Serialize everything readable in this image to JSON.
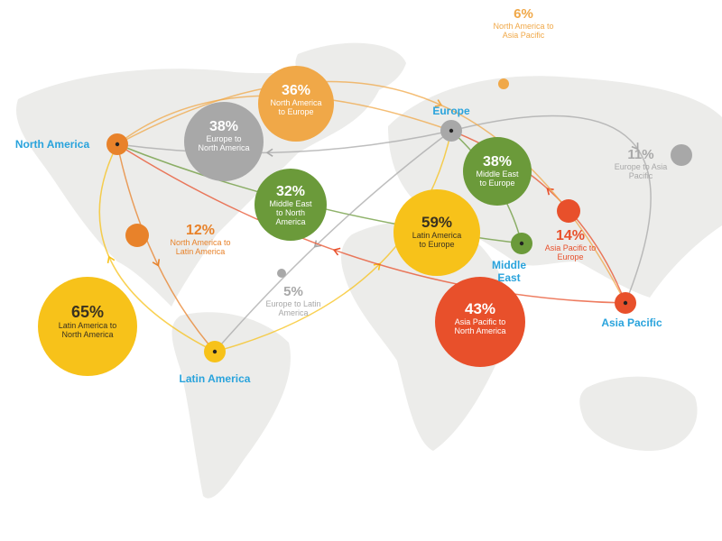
{
  "colors": {
    "orange": "#e8822a",
    "light_orange": "#f0a848",
    "gray": "#a8a8a8",
    "green": "#6b9a3a",
    "yellow": "#f7c21a",
    "red": "#e8502b",
    "region_label": "#29a3dc",
    "land": "#ececea"
  },
  "regions": [
    {
      "id": "na",
      "name": "North America",
      "color": "#e8822a"
    },
    {
      "id": "eu",
      "name": "Europe",
      "color": "#a8a8a8"
    },
    {
      "id": "me",
      "name": "Middle East",
      "color": "#6b9a3a"
    },
    {
      "id": "ap",
      "name": "Asia Pacific",
      "color": "#e8502b"
    },
    {
      "id": "la",
      "name": "Latin America",
      "color": "#f7c21a"
    }
  ],
  "flows": [
    {
      "percent": "36%",
      "label": "North America to Europe",
      "from": "na",
      "to": "eu",
      "color": "#f0a848",
      "value": 36
    },
    {
      "percent": "38%",
      "label": "Europe to North America",
      "from": "eu",
      "to": "na",
      "color": "#a8a8a8",
      "value": 38
    },
    {
      "percent": "32%",
      "label": "Middle East to North America",
      "from": "me",
      "to": "na",
      "color": "#6b9a3a",
      "value": 32
    },
    {
      "percent": "12%",
      "label": "North America to Latin America",
      "from": "na",
      "to": "la",
      "color": "#e8822a",
      "value": 12
    },
    {
      "percent": "65%",
      "label": "Latin America to North America",
      "from": "la",
      "to": "na",
      "color": "#f7c21a",
      "value": 65
    },
    {
      "percent": "5%",
      "label": "Europe to Latin America",
      "from": "eu",
      "to": "la",
      "color": "#a8a8a8",
      "value": 5
    },
    {
      "percent": "59%",
      "label": "Latin America to Europe",
      "from": "la",
      "to": "eu",
      "color": "#f7c21a",
      "value": 59
    },
    {
      "percent": "38%",
      "label": "Middle East to Europe",
      "from": "me",
      "to": "eu",
      "color": "#6b9a3a",
      "value": 38
    },
    {
      "percent": "14%",
      "label": "Asia Pacific to Europe",
      "from": "ap",
      "to": "eu",
      "color": "#e8502b",
      "value": 14
    },
    {
      "percent": "43%",
      "label": "Asia Pacific to North America",
      "from": "ap",
      "to": "na",
      "color": "#e8502b",
      "value": 43
    },
    {
      "percent": "11%",
      "label": "Europe to Asia Pacific",
      "from": "eu",
      "to": "ap",
      "color": "#a8a8a8",
      "value": 11
    },
    {
      "percent": "6%",
      "label": "North America to Asia Pacific",
      "from": "na",
      "to": "ap",
      "color": "#f0a848",
      "value": 6
    }
  ]
}
